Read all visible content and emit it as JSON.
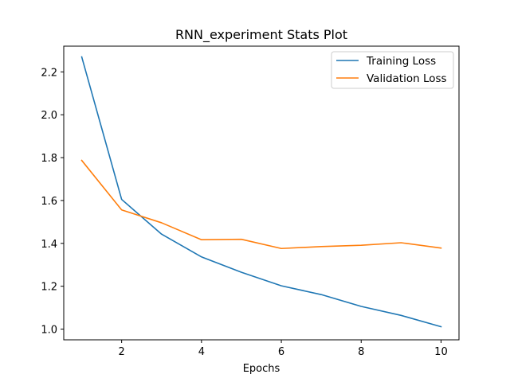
{
  "chart_data": {
    "type": "line",
    "title": "RNN_experiment Stats Plot",
    "xlabel": "Epochs",
    "ylabel": "",
    "xlim": [
      0.55,
      10.45
    ],
    "ylim": [
      0.95,
      2.32
    ],
    "x_ticks": [
      2,
      4,
      6,
      8,
      10
    ],
    "y_ticks": [
      1.0,
      1.2,
      1.4,
      1.6,
      1.8,
      2.0,
      2.2
    ],
    "grid": false,
    "legend_position": "top-right",
    "x": [
      1,
      2,
      3,
      4,
      5,
      6,
      7,
      8,
      9,
      10
    ],
    "series": [
      {
        "name": "Training Loss",
        "color": "#1f77b4",
        "values": [
          2.27,
          1.605,
          1.443,
          1.337,
          1.265,
          1.202,
          1.161,
          1.106,
          1.064,
          1.011
        ]
      },
      {
        "name": "Validation Loss",
        "color": "#ff7f0e",
        "values": [
          1.787,
          1.556,
          1.496,
          1.417,
          1.419,
          1.376,
          1.385,
          1.391,
          1.403,
          1.378
        ]
      }
    ]
  }
}
